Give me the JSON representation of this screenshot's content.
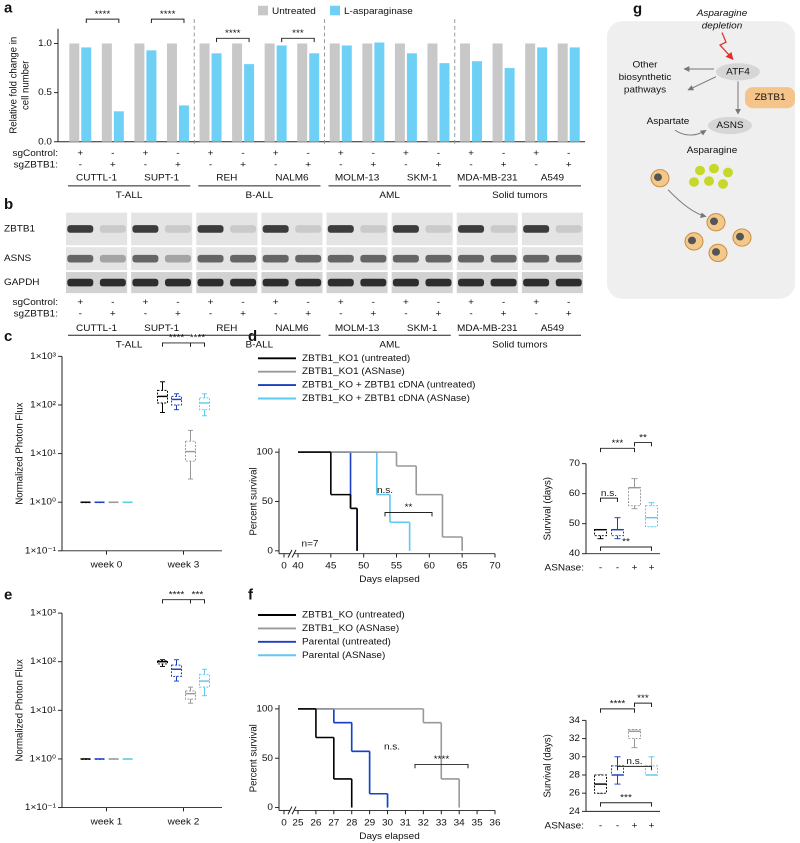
{
  "panel_labels": [
    "a",
    "b",
    "c",
    "d",
    "e",
    "f",
    "g"
  ],
  "chart_data": [
    {
      "type": "bar",
      "legend_position": "top",
      "ylabel": [
        "Relative fold change in",
        "cell number"
      ],
      "categories": [
        null,
        null,
        null,
        null,
        null,
        null,
        null,
        null,
        null,
        null,
        null,
        null,
        null,
        null,
        null,
        null
      ],
      "series": [
        {
          "name": "Untreated",
          "color": "#c8c8c8",
          "values": [
            1,
            1,
            1,
            1,
            1,
            1,
            1,
            1,
            1,
            1,
            1,
            1,
            1,
            1,
            1,
            1
          ]
        },
        {
          "name": "L-asparaginase",
          "color": "#6fd0f5",
          "values": [
            0.96,
            0.31,
            0.93,
            0.37,
            0.9,
            0.79,
            0.98,
            0.9,
            0.98,
            1.01,
            0.9,
            0.8,
            0.82,
            0.75,
            0.96,
            0.96
          ]
        }
      ],
      "ylim": [
        0,
        1.15
      ],
      "yticks": [
        {
          "value": 0,
          "label": "0.0"
        },
        {
          "value": 0.5,
          "label": "0.5"
        },
        {
          "value": 1,
          "label": "1.0"
        }
      ],
      "row_labels": [
        "sgControl:",
        "sgZBTB1:"
      ],
      "rows": [
        [
          "+",
          "-",
          "+",
          "-",
          "+",
          "-",
          "+",
          "-",
          "+",
          "-",
          "+",
          "-",
          "+",
          "-",
          "+",
          "-"
        ],
        [
          "-",
          "+",
          "-",
          "+",
          "-",
          "+",
          "-",
          "+",
          "-",
          "+",
          "-",
          "+",
          "-",
          "+",
          "-",
          "+"
        ]
      ],
      "groups": [
        "CUTTL-1",
        "SUPT-1",
        "REH",
        "NALM6",
        "MOLM-13",
        "SKM-1",
        "MDA-MB-231",
        "A549"
      ],
      "supergroups": [
        "T-ALL",
        "B-ALL",
        "AML",
        "Solid tumors"
      ],
      "significance": [
        "****",
        "****",
        "****",
        "***",
        null,
        null,
        null,
        null
      ]
    },
    {
      "type": "box",
      "log_scale": true,
      "ylabel": "Normalized Photon Flux",
      "categories": [
        "week 0",
        "week 3"
      ],
      "ylim": [
        0.1,
        1000
      ],
      "yticks": [
        {
          "value": 0.1,
          "label": "1×10⁻¹"
        },
        {
          "value": 1,
          "label": "1×10⁰"
        },
        {
          "value": 10,
          "label": "1×10¹"
        },
        {
          "value": 100,
          "label": "1×10²"
        },
        {
          "value": 1000,
          "label": "1×10³"
        }
      ],
      "series": [
        {
          "color": "#000000",
          "boxes": [
            [
              1,
              1,
              1,
              1,
              1
            ],
            [
              70,
              110,
              150,
              200,
              300
            ]
          ]
        },
        {
          "color": "#1a3fc4",
          "boxes": [
            [
              1,
              1,
              1,
              1,
              1
            ],
            [
              80,
              100,
              130,
              150,
              170
            ]
          ]
        },
        {
          "color": "#999999",
          "boxes": [
            [
              1,
              1,
              1,
              1,
              1
            ],
            [
              3,
              7,
              11,
              18,
              30
            ]
          ]
        },
        {
          "color": "#5ec8f0",
          "boxes": [
            [
              1,
              1,
              1,
              1,
              1
            ],
            [
              60,
              80,
              110,
              140,
              170
            ]
          ]
        }
      ],
      "annotations": [
        "****",
        "****"
      ]
    },
    {
      "type": "step",
      "xlabel": "Days elapsed",
      "ylabel": "Percent survival",
      "xlim": [
        40,
        70
      ],
      "xticks": [
        0,
        40,
        45,
        50,
        55,
        60,
        65,
        70
      ],
      "x_break": true,
      "ylim": [
        0,
        100
      ],
      "yticks": [
        0,
        50,
        100
      ],
      "series": [
        {
          "name": "ZBTB1_KO1 (untreated)",
          "color": "#000000",
          "x": [
            40,
            45,
            48,
            49
          ],
          "values": [
            100,
            57,
            43,
            0
          ]
        },
        {
          "name": "ZBTB1_KO1 (ASNase)",
          "color": "#999999",
          "x": [
            40,
            55,
            58,
            62,
            65
          ],
          "values": [
            100,
            86,
            57,
            14,
            0
          ]
        },
        {
          "name": "ZBTB1_KO + ZBTB1 cDNA (untreated)",
          "color": "#1a3fc4",
          "x": [
            40,
            48,
            49
          ],
          "values": [
            100,
            43,
            0
          ]
        },
        {
          "name": "ZBTB1_KO + ZBTB1 cDNA (ASNase)",
          "color": "#5ec8f0",
          "x": [
            40,
            52,
            54,
            57
          ],
          "values": [
            100,
            57,
            29,
            0
          ]
        }
      ],
      "annotations": [
        "n.s.",
        "**",
        "n=7"
      ]
    },
    {
      "type": "box",
      "ylabel": "Survival (days)",
      "xlabel": "ASNase:",
      "categories": [
        "-",
        "-",
        "+",
        "+"
      ],
      "ylim": [
        40,
        70
      ],
      "yticks": [
        40,
        50,
        60,
        70
      ],
      "colors": [
        "#000000",
        "#1a3fc4",
        "#999999",
        "#5ec8f0"
      ],
      "boxes": [
        [
          45,
          46,
          48,
          48,
          48
        ],
        [
          45,
          46,
          48,
          48,
          52
        ],
        [
          55,
          56,
          62,
          62,
          65
        ],
        [
          49,
          49,
          52,
          56,
          57
        ]
      ],
      "annotations": [
        "***",
        "**",
        "n.s.",
        "**"
      ]
    },
    {
      "type": "box",
      "log_scale": true,
      "ylabel": "Normalized Photon Flux",
      "categories": [
        "week 1",
        "week 2"
      ],
      "ylim": [
        0.1,
        1000
      ],
      "yticks": [
        {
          "value": 0.1,
          "label": "1×10⁻¹"
        },
        {
          "value": 1,
          "label": "1×10⁰"
        },
        {
          "value": 10,
          "label": "1×10¹"
        },
        {
          "value": 100,
          "label": "1×10²"
        },
        {
          "value": 1000,
          "label": "1×10³"
        }
      ],
      "series": [
        {
          "color": "#000000",
          "boxes": [
            [
              1,
              1,
              1,
              1,
              1
            ],
            [
              80,
              90,
              100,
              105,
              110
            ]
          ]
        },
        {
          "color": "#1a3fc4",
          "boxes": [
            [
              1,
              1,
              1,
              1,
              1
            ],
            [
              40,
              50,
              70,
              85,
              110
            ]
          ]
        },
        {
          "color": "#999999",
          "boxes": [
            [
              1,
              1,
              1,
              1,
              1
            ],
            [
              14,
              17,
              22,
              25,
              30
            ]
          ]
        },
        {
          "color": "#5ec8f0",
          "boxes": [
            [
              1,
              1,
              1,
              1,
              1
            ],
            [
              20,
              30,
              40,
              55,
              70
            ]
          ]
        }
      ],
      "annotations": [
        "****",
        "***"
      ]
    },
    {
      "type": "step",
      "xlabel": "Days elapsed",
      "ylabel": "Percent survival",
      "xlim": [
        25,
        36
      ],
      "xticks": [
        0,
        25,
        26,
        27,
        28,
        29,
        30,
        31,
        32,
        33,
        34,
        35,
        36
      ],
      "x_break": true,
      "ylim": [
        0,
        100
      ],
      "yticks": [
        0,
        50,
        100
      ],
      "series": [
        {
          "name": "ZBTB1_KO (untreated)",
          "color": "#000000",
          "x": [
            25,
            26,
            27,
            28
          ],
          "values": [
            100,
            71,
            29,
            0
          ]
        },
        {
          "name": "ZBTB1_KO (ASNase)",
          "color": "#999999",
          "x": [
            25,
            32,
            33,
            34
          ],
          "values": [
            100,
            86,
            29,
            0
          ]
        },
        {
          "name": "Parental (untreated)",
          "color": "#1a3fc4",
          "x": [
            25,
            27,
            28,
            29,
            30
          ],
          "values": [
            100,
            86,
            57,
            14,
            0
          ]
        },
        {
          "name": "Parental (ASNase)",
          "color": "#5ec8f0",
          "x": [
            25,
            27,
            28,
            29,
            30
          ],
          "values": [
            100,
            86,
            57,
            14,
            0
          ]
        }
      ],
      "annotations": [
        "n.s.",
        "****"
      ]
    },
    {
      "type": "box",
      "ylabel": "Survival (days)",
      "xlabel": "ASNase:",
      "categories": [
        "-",
        "-",
        "+",
        "+"
      ],
      "ylim": [
        24,
        34
      ],
      "yticks": [
        24,
        26,
        28,
        30,
        32,
        34
      ],
      "colors": [
        "#000000",
        "#1a3fc4",
        "#999999",
        "#5ec8f0"
      ],
      "boxes": [
        [
          26,
          26,
          27,
          28,
          28
        ],
        [
          27,
          28,
          28,
          29,
          30
        ],
        [
          31,
          32,
          32.8,
          33,
          33
        ],
        [
          28,
          28,
          28,
          29,
          30
        ]
      ],
      "annotations": [
        "****",
        "***",
        "n.s.",
        "***"
      ]
    }
  ],
  "blot": {
    "proteins": [
      "ZBTB1",
      "ASNS",
      "GAPDH"
    ],
    "row_labels": [
      "sgControl:",
      "sgZBTB1:"
    ],
    "rows": [
      [
        "+",
        "-",
        "+",
        "-",
        "+",
        "-",
        "+",
        "-",
        "+",
        "-",
        "+",
        "-",
        "+",
        "-",
        "+",
        "-"
      ],
      [
        "-",
        "+",
        "-",
        "+",
        "-",
        "+",
        "-",
        "+",
        "-",
        "+",
        "-",
        "+",
        "-",
        "+",
        "-",
        "+"
      ]
    ],
    "groups": [
      "CUTTL-1",
      "SUPT-1",
      "REH",
      "NALM6",
      "MOLM-13",
      "SKM-1",
      "MDA-MB-231",
      "A549"
    ],
    "supergroups": [
      "T-ALL",
      "B-ALL",
      "AML",
      "Solid tumors"
    ]
  },
  "diagram": {
    "depletion": [
      "Asparagine",
      "depletion"
    ],
    "atf4": "ATF4",
    "other": [
      "Other",
      "biosynthetic",
      "pathways"
    ],
    "zbtb1": "ZBTB1",
    "aspartate": "Aspartate",
    "asns": "ASNS",
    "asparagine": "Asparagine"
  }
}
